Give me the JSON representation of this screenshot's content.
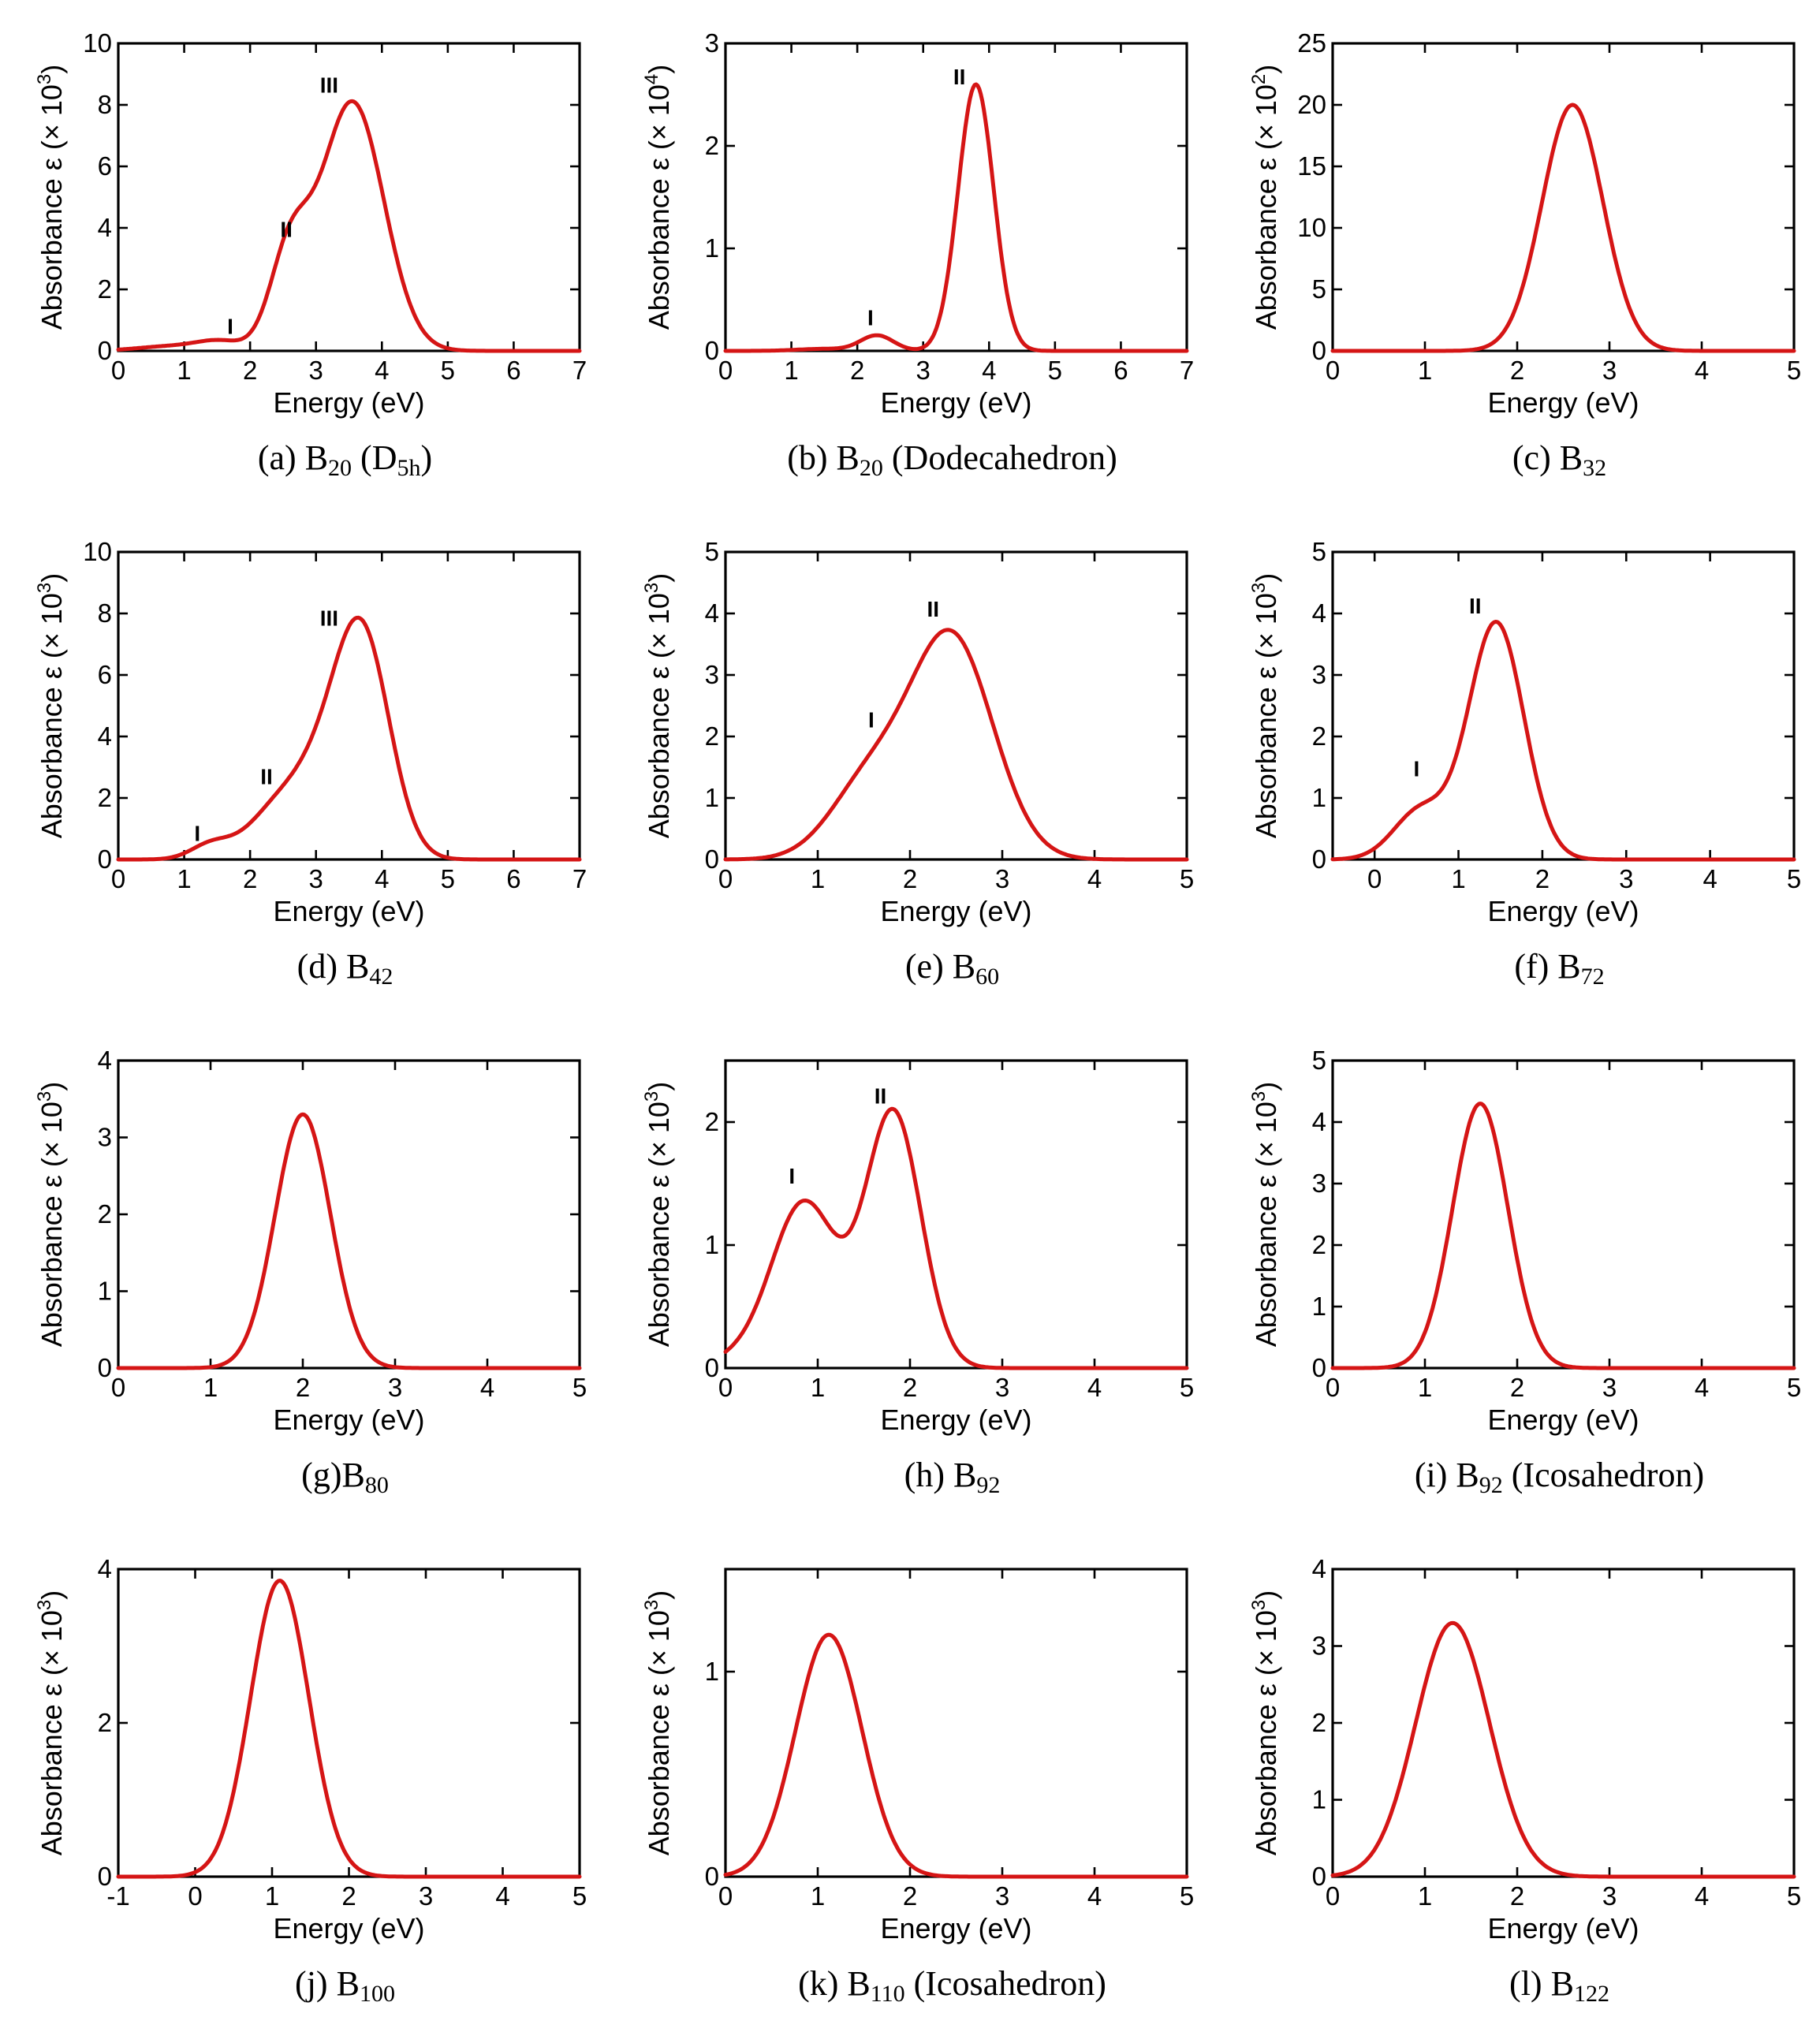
{
  "chart_data": [
    {
      "id": "a",
      "type": "line",
      "caption": {
        "prefix": "(a) B",
        "sub": "20",
        "suffix": " (D",
        "sub2": "5h",
        "suffix2": ")"
      },
      "xlabel": "Energy (eV)",
      "ylabel": "Absorbance ε (× 10",
      "ylabel_exp": "3",
      "ylabel_close": ")",
      "xlim": [
        0,
        7
      ],
      "ylim": [
        0,
        10
      ],
      "xticks": [
        0,
        1,
        2,
        3,
        4,
        5,
        6,
        7
      ],
      "yticks": [
        0,
        2,
        4,
        6,
        8,
        10
      ],
      "series": [
        {
          "name": "B20 (D5h)",
          "peaks": [
            [
              1.55,
              0.3,
              0.35
            ],
            [
              2.6,
              3.0,
              0.3
            ],
            [
              3.55,
              8.1,
              0.48
            ],
            [
              0.8,
              0.15,
              0.5
            ]
          ]
        }
      ],
      "annotations": [
        {
          "text": "I",
          "x": 1.7,
          "y": 0.55
        },
        {
          "text": "II",
          "x": 2.55,
          "y": 3.7
        },
        {
          "text": "III",
          "x": 3.2,
          "y": 8.4
        }
      ]
    },
    {
      "id": "b",
      "type": "line",
      "caption": {
        "prefix": "(b) B",
        "sub": "20",
        "suffix": " (Dodecahedron)"
      },
      "xlabel": "Energy (eV)",
      "ylabel": "Absorbance ε (× 10",
      "ylabel_exp": "4",
      "ylabel_close": ")",
      "xlim": [
        0,
        7
      ],
      "ylim": [
        0,
        3
      ],
      "xticks": [
        0,
        1,
        2,
        3,
        4,
        5,
        6,
        7
      ],
      "yticks": [
        0,
        1,
        2,
        3
      ],
      "series": [
        {
          "name": "B20 (Dodecahedron)",
          "peaks": [
            [
              2.3,
              0.15,
              0.25
            ],
            [
              3.8,
              2.6,
              0.27
            ],
            [
              1.5,
              0.02,
              0.4
            ]
          ]
        }
      ],
      "annotations": [
        {
          "text": "I",
          "x": 2.2,
          "y": 0.25
        },
        {
          "text": "II",
          "x": 3.55,
          "y": 2.6
        }
      ]
    },
    {
      "id": "c",
      "type": "line",
      "caption": {
        "prefix": "(c) B",
        "sub": "32",
        "suffix": ""
      },
      "xlabel": "Energy (eV)",
      "ylabel": "Absorbance ε (× 10",
      "ylabel_exp": "2",
      "ylabel_close": ")",
      "xlim": [
        0,
        5
      ],
      "ylim": [
        0,
        25
      ],
      "xticks": [
        0,
        1,
        2,
        3,
        4,
        5
      ],
      "yticks": [
        0,
        5,
        10,
        15,
        20,
        25
      ],
      "series": [
        {
          "name": "B32",
          "peaks": [
            [
              2.6,
              20,
              0.33
            ]
          ]
        }
      ],
      "annotations": []
    },
    {
      "id": "d",
      "type": "line",
      "caption": {
        "prefix": "(d) B",
        "sub": "42",
        "suffix": ""
      },
      "xlabel": "Energy (eV)",
      "ylabel": "Absorbance ε (× 10",
      "ylabel_exp": "3",
      "ylabel_close": ")",
      "xlim": [
        0,
        7
      ],
      "ylim": [
        0,
        10
      ],
      "xticks": [
        0,
        1,
        2,
        3,
        4,
        5,
        6,
        7
      ],
      "yticks": [
        0,
        2,
        4,
        6,
        8,
        10
      ],
      "series": [
        {
          "name": "B42",
          "peaks": [
            [
              1.4,
              0.45,
              0.3
            ],
            [
              2.5,
              1.8,
              0.5
            ],
            [
              3.7,
              7.2,
              0.42
            ],
            [
              3.1,
              1.5,
              0.4
            ]
          ]
        }
      ],
      "annotations": [
        {
          "text": "I",
          "x": 1.2,
          "y": 0.6
        },
        {
          "text": "II",
          "x": 2.25,
          "y": 2.45
        },
        {
          "text": "III",
          "x": 3.2,
          "y": 7.6
        }
      ]
    },
    {
      "id": "e",
      "type": "line",
      "caption": {
        "prefix": "(e) B",
        "sub": "60",
        "suffix": ""
      },
      "xlabel": "Energy (eV)",
      "ylabel": "Absorbance ε (× 10",
      "ylabel_exp": "3",
      "ylabel_close": ")",
      "xlim": [
        0,
        5
      ],
      "ylim": [
        0,
        5
      ],
      "xticks": [
        0,
        1,
        2,
        3,
        4,
        5
      ],
      "yticks": [
        0,
        1,
        2,
        3,
        4,
        5
      ],
      "series": [
        {
          "name": "B60",
          "peaks": [
            [
              1.55,
              1.2,
              0.42
            ],
            [
              2.45,
              3.6,
              0.45
            ]
          ]
        }
      ],
      "annotations": [
        {
          "text": "I",
          "x": 1.58,
          "y": 2.15
        },
        {
          "text": "II",
          "x": 2.25,
          "y": 3.95
        }
      ]
    },
    {
      "id": "f",
      "type": "line",
      "caption": {
        "prefix": "(f) B",
        "sub": "72",
        "suffix": ""
      },
      "xlabel": "Energy (eV)",
      "ylabel": "Absorbance ε (× 10",
      "ylabel_exp": "3",
      "ylabel_close": ")",
      "xlim": [
        -0.5,
        5
      ],
      "ylim": [
        0,
        5
      ],
      "xticks": [
        0,
        1,
        2,
        3,
        4,
        5
      ],
      "yticks": [
        0,
        1,
        2,
        3,
        4,
        5
      ],
      "series": [
        {
          "name": "B72",
          "peaks": [
            [
              0.55,
              0.8,
              0.32
            ],
            [
              1.45,
              3.85,
              0.33
            ]
          ]
        }
      ],
      "annotations": [
        {
          "text": "I",
          "x": 0.5,
          "y": 1.35
        },
        {
          "text": "II",
          "x": 1.2,
          "y": 4.0
        }
      ]
    },
    {
      "id": "g",
      "type": "line",
      "caption": {
        "prefix": "(g)B",
        "sub": "80",
        "suffix": ""
      },
      "xlabel": "Energy (eV)",
      "ylabel": "Absorbance ε (× 10",
      "ylabel_exp": "3",
      "ylabel_close": ")",
      "xlim": [
        0,
        5
      ],
      "ylim": [
        0,
        4
      ],
      "xticks": [
        0,
        1,
        2,
        3,
        4,
        5
      ],
      "yticks": [
        0,
        1,
        2,
        3,
        4
      ],
      "series": [
        {
          "name": "B80",
          "peaks": [
            [
              2.0,
              3.3,
              0.3
            ]
          ]
        }
      ],
      "annotations": []
    },
    {
      "id": "h",
      "type": "line",
      "caption": {
        "prefix": "(h) B",
        "sub": "92",
        "suffix": ""
      },
      "xlabel": "Energy (eV)",
      "ylabel": "Absorbance ε (× 10",
      "ylabel_exp": "3",
      "ylabel_close": ")",
      "xlim": [
        0,
        5
      ],
      "ylim": [
        0,
        2.5
      ],
      "xticks": [
        0,
        1,
        2,
        3,
        4,
        5
      ],
      "yticks": [
        0,
        1,
        2
      ],
      "series": [
        {
          "name": "B92",
          "peaks": [
            [
              0.85,
              1.35,
              0.36
            ],
            [
              1.82,
              2.07,
              0.3
            ],
            [
              0.05,
              0.05,
              0.25
            ]
          ]
        }
      ],
      "annotations": [
        {
          "text": "I",
          "x": 0.72,
          "y": 1.5
        },
        {
          "text": "II",
          "x": 1.68,
          "y": 2.15
        }
      ]
    },
    {
      "id": "i",
      "type": "line",
      "caption": {
        "prefix": "(i) B",
        "sub": "92",
        "suffix": " (Icosahedron)"
      },
      "xlabel": "Energy (eV)",
      "ylabel": "Absorbance ε (× 10",
      "ylabel_exp": "3",
      "ylabel_close": ")",
      "xlim": [
        0,
        5
      ],
      "ylim": [
        0,
        5
      ],
      "xticks": [
        0,
        1,
        2,
        3,
        4,
        5
      ],
      "yticks": [
        0,
        1,
        2,
        3,
        4,
        5
      ],
      "series": [
        {
          "name": "B92 (Icosahedron)",
          "peaks": [
            [
              1.6,
              4.3,
              0.3
            ]
          ]
        }
      ],
      "annotations": []
    },
    {
      "id": "j",
      "type": "line",
      "caption": {
        "prefix": "(j) B",
        "sub": "100",
        "suffix": ""
      },
      "xlabel": "Energy (eV)",
      "ylabel": "Absorbance ε (× 10",
      "ylabel_exp": "3",
      "ylabel_close": ")",
      "xlim": [
        -1,
        5
      ],
      "ylim": [
        0,
        4
      ],
      "xticks": [
        -1,
        0,
        1,
        2,
        3,
        4,
        5
      ],
      "yticks": [
        0,
        2,
        4
      ],
      "series": [
        {
          "name": "B100",
          "peaks": [
            [
              1.1,
              3.85,
              0.38
            ]
          ]
        }
      ],
      "annotations": []
    },
    {
      "id": "k",
      "type": "line",
      "caption": {
        "prefix": "(k) B",
        "sub": "110",
        "suffix": " (Icosahedron)"
      },
      "xlabel": "Energy (eV)",
      "ylabel": "Absorbance ε (× 10",
      "ylabel_exp": "3",
      "ylabel_close": ")",
      "xlim": [
        0,
        5
      ],
      "ylim": [
        0,
        1.5
      ],
      "xticks": [
        0,
        1,
        2,
        3,
        4,
        5
      ],
      "yticks": [
        0,
        1
      ],
      "series": [
        {
          "name": "B110 (Icosahedron)",
          "peaks": [
            [
              1.12,
              1.18,
              0.36
            ]
          ]
        }
      ],
      "annotations": []
    },
    {
      "id": "l",
      "type": "line",
      "caption": {
        "prefix": "(l) B",
        "sub": "122",
        "suffix": ""
      },
      "xlabel": "Energy (eV)",
      "ylabel": "Absorbance ε (× 10",
      "ylabel_exp": "3",
      "ylabel_close": ")",
      "xlim": [
        0,
        5
      ],
      "ylim": [
        0,
        4
      ],
      "xticks": [
        0,
        1,
        2,
        3,
        4,
        5
      ],
      "yticks": [
        0,
        1,
        2,
        3,
        4
      ],
      "series": [
        {
          "name": "B122",
          "peaks": [
            [
              1.3,
              3.3,
              0.4
            ]
          ]
        }
      ],
      "annotations": []
    }
  ],
  "colors": {
    "curve": "#d51515",
    "axis": "#000000"
  }
}
